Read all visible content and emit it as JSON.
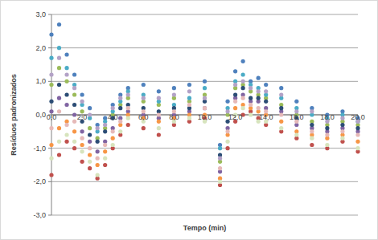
{
  "chart_data": {
    "type": "scatter",
    "x_label": "Tempo (min)",
    "y_label": "Resíduos padronizados",
    "xlim": [
      0,
      20
    ],
    "ylim": [
      -3,
      3
    ],
    "xticks": [
      {
        "value": 0,
        "label": "0,0"
      },
      {
        "value": 2,
        "label": "2,0"
      },
      {
        "value": 4,
        "label": "4,0"
      },
      {
        "value": 6,
        "label": "6,0"
      },
      {
        "value": 8,
        "label": "8,0"
      },
      {
        "value": 10,
        "label": "10,0"
      },
      {
        "value": 12,
        "label": "12,0"
      },
      {
        "value": 14,
        "label": "14,0"
      },
      {
        "value": 16,
        "label": "16,0"
      },
      {
        "value": 18,
        "label": "18,0"
      },
      {
        "value": 20,
        "label": "20,0"
      }
    ],
    "yticks": [
      {
        "value": -3,
        "label": "-3,0"
      },
      {
        "value": -2,
        "label": "-2,0"
      },
      {
        "value": -1,
        "label": "-1,0"
      },
      {
        "value": 0,
        "label": "0,0"
      },
      {
        "value": 1,
        "label": "1,0"
      },
      {
        "value": 2,
        "label": "2,0"
      },
      {
        "value": 3,
        "label": "3,0"
      }
    ],
    "grid": true,
    "marker": "circle",
    "x": [
      0,
      0.5,
      1,
      1.5,
      2,
      2.5,
      3,
      3.5,
      4,
      4.5,
      5,
      6,
      7,
      8,
      9,
      10,
      11,
      11.5,
      12,
      12.5,
      13,
      13.5,
      14,
      15,
      16,
      17,
      18,
      19,
      20
    ],
    "series": [
      {
        "color": "#4f81bd",
        "values": [
          2.4,
          2.7,
          1.8,
          1.2,
          0.6,
          0.2,
          -0.3,
          -0.1,
          0.3,
          0.6,
          0.8,
          0.9,
          0.7,
          0.8,
          0.9,
          1.0,
          -0.9,
          0.4,
          1.3,
          1.6,
          1.0,
          1.1,
          0.9,
          0.8,
          0.4,
          0.2,
          0.0,
          0.1,
          -0.1
        ]
      },
      {
        "color": "#c0504d",
        "values": [
          -1.8,
          -1.2,
          -0.8,
          -1.0,
          -1.4,
          -1.6,
          -1.9,
          -1.5,
          -1.0,
          -0.6,
          -0.3,
          -0.4,
          -0.6,
          -0.3,
          -0.2,
          -0.1,
          -2.1,
          -1.0,
          -0.2,
          0.0,
          0.1,
          -0.1,
          -0.3,
          -0.5,
          -0.7,
          -0.9,
          -1.0,
          -0.8,
          -1.1
        ]
      },
      {
        "color": "#9bbb59",
        "values": [
          0.9,
          1.4,
          1.0,
          0.6,
          0.1,
          -0.4,
          -0.7,
          -0.4,
          0.0,
          0.3,
          0.5,
          0.4,
          0.3,
          0.5,
          0.4,
          0.6,
          -1.4,
          0.0,
          0.8,
          0.9,
          0.7,
          0.6,
          0.5,
          0.3,
          0.0,
          -0.2,
          -0.3,
          -0.2,
          -0.3
        ]
      },
      {
        "color": "#8064a2",
        "values": [
          0.1,
          0.5,
          0.3,
          0.0,
          -0.5,
          -0.8,
          -1.1,
          -0.8,
          -0.4,
          -0.1,
          0.1,
          0.0,
          -0.1,
          0.0,
          0.1,
          0.2,
          -1.7,
          -0.4,
          0.5,
          0.6,
          0.4,
          0.4,
          0.2,
          0.1,
          -0.3,
          -0.4,
          -0.5,
          -0.4,
          -0.5
        ]
      },
      {
        "color": "#4bacc6",
        "values": [
          1.7,
          2.0,
          1.4,
          0.9,
          0.3,
          -0.1,
          -0.5,
          -0.2,
          0.1,
          0.4,
          0.7,
          0.6,
          0.4,
          0.3,
          0.5,
          0.8,
          -1.0,
          0.2,
          1.0,
          1.2,
          0.9,
          0.8,
          0.6,
          0.5,
          0.2,
          0.0,
          -0.1,
          0.0,
          -0.2
        ]
      },
      {
        "color": "#f79646",
        "values": [
          -0.9,
          -0.4,
          -0.2,
          -0.5,
          -0.9,
          -1.2,
          -1.5,
          -1.1,
          -0.7,
          -0.3,
          0.0,
          -0.1,
          -0.2,
          -0.1,
          0.0,
          0.0,
          -1.9,
          -0.6,
          0.2,
          0.3,
          0.2,
          0.1,
          0.0,
          -0.2,
          -0.5,
          -0.6,
          -0.7,
          -0.6,
          -0.8
        ]
      },
      {
        "color": "#2c4d75",
        "values": [
          0.4,
          0.9,
          0.6,
          0.3,
          -0.2,
          -0.6,
          -0.8,
          -0.5,
          -0.1,
          0.2,
          0.3,
          0.2,
          0.1,
          0.2,
          0.2,
          0.4,
          -1.2,
          -0.2,
          0.6,
          0.8,
          0.5,
          0.5,
          0.4,
          0.2,
          -0.1,
          -0.3,
          -0.4,
          -0.3,
          -0.4
        ]
      },
      {
        "color": "#e6b9b8",
        "values": [
          -0.4,
          0.1,
          -0.3,
          -0.2,
          -0.7,
          -1.0,
          -1.3,
          -0.9,
          -0.5,
          -0.2,
          0.2,
          0.1,
          0.0,
          0.1,
          0.3,
          0.2,
          -1.6,
          -0.5,
          0.4,
          0.5,
          0.3,
          0.2,
          0.1,
          0.0,
          -0.2,
          -0.5,
          -0.6,
          -0.5,
          -0.6
        ]
      },
      {
        "color": "#b3a2c7",
        "values": [
          1.2,
          1.7,
          1.2,
          0.8,
          0.4,
          0.0,
          -0.4,
          -0.3,
          0.2,
          0.5,
          0.6,
          0.5,
          0.5,
          0.6,
          0.7,
          0.5,
          -1.3,
          0.1,
          0.9,
          1.0,
          0.8,
          0.7,
          0.7,
          0.6,
          0.1,
          0.1,
          -0.2,
          -0.1,
          -0.2
        ]
      },
      {
        "color": "#d7e4bd",
        "values": [
          -1.3,
          -0.8,
          -0.6,
          -0.8,
          -1.1,
          -1.4,
          -1.8,
          -1.3,
          -0.9,
          -0.5,
          -0.1,
          -0.2,
          -0.4,
          -0.2,
          -0.1,
          -0.2,
          -2.0,
          -0.8,
          0.0,
          0.2,
          0.0,
          -0.2,
          -0.2,
          -0.4,
          -0.6,
          -0.7,
          -0.9,
          -0.7,
          -1.0
        ]
      }
    ]
  }
}
